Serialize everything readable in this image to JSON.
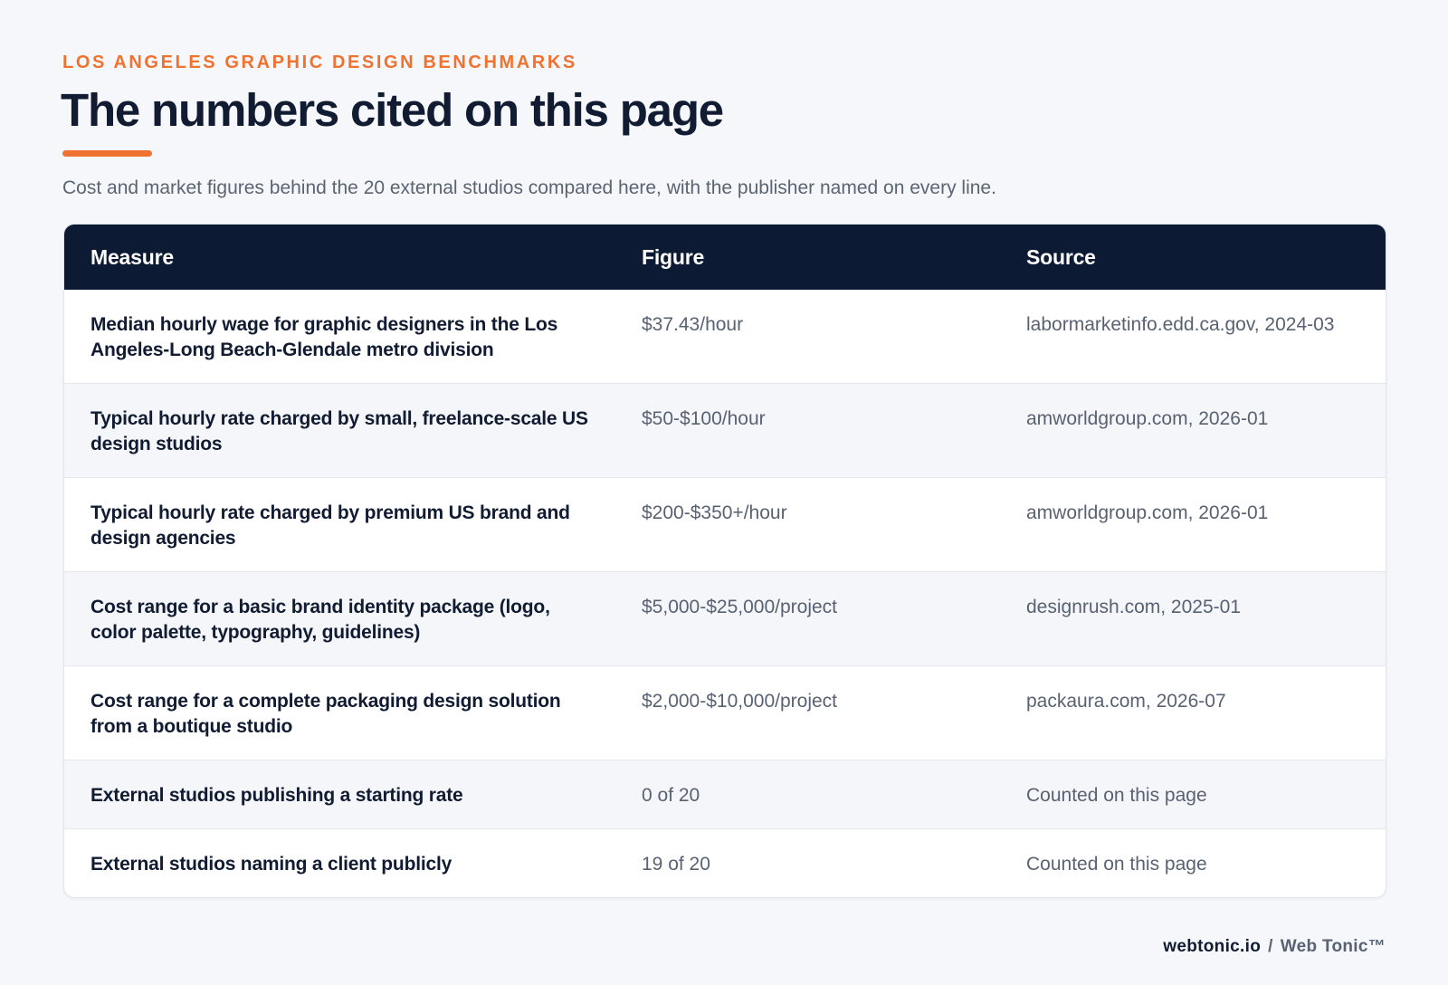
{
  "header": {
    "eyebrow": "LOS ANGELES GRAPHIC DESIGN BENCHMARKS",
    "title": "The numbers cited on this page",
    "subtitle": "Cost and market figures behind the 20 external studios compared here, with the publisher named on every line."
  },
  "colors": {
    "accent": "#f07230",
    "header_bg": "#0c1a33",
    "title_text": "#111c33"
  },
  "table": {
    "columns": [
      "Measure",
      "Figure",
      "Source"
    ],
    "rows": [
      {
        "measure": "Median hourly wage for graphic designers in the Los Angeles-Long Beach-Glendale metro division",
        "figure": "$37.43/hour",
        "source": "labormarketinfo.edd.ca.gov, 2024-03"
      },
      {
        "measure": "Typical hourly rate charged by small, freelance-scale US design studios",
        "figure": "$50-$100/hour",
        "source": "amworldgroup.com, 2026-01"
      },
      {
        "measure": "Typical hourly rate charged by premium US brand and design agencies",
        "figure": "$200-$350+/hour",
        "source": "amworldgroup.com, 2026-01"
      },
      {
        "measure": "Cost range for a basic brand identity package (logo, color palette, typography, guidelines)",
        "figure": "$5,000-$25,000/project",
        "source": "designrush.com, 2025-01"
      },
      {
        "measure": "Cost range for a complete packaging design solution from a boutique studio",
        "figure": "$2,000-$10,000/project",
        "source": "packaura.com, 2026-07"
      },
      {
        "measure": "External studios publishing a starting rate",
        "figure": "0 of 20",
        "source": "Counted on this page"
      },
      {
        "measure": "External studios naming a client publicly",
        "figure": "19 of 20",
        "source": "Counted on this page"
      }
    ]
  },
  "footer": {
    "domain": "webtonic.io",
    "separator": "/",
    "brand": "Web Tonic™"
  }
}
